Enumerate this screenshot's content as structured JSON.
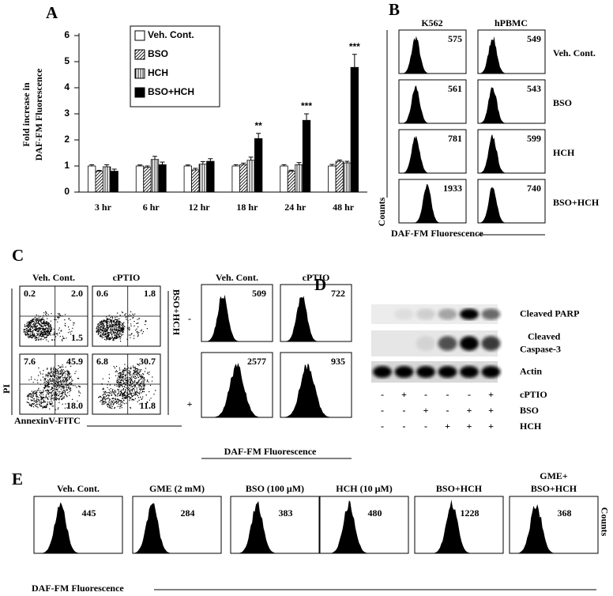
{
  "chart_data": {
    "type": "bar",
    "panel_label": "A",
    "ylabel": [
      "Fold increase in",
      "DAF-FM Fluorescence"
    ],
    "categories": [
      "3 hr",
      "6 hr",
      "12 hr",
      "18 hr",
      "24 hr",
      "48 hr"
    ],
    "series": [
      {
        "name": "Veh. Cont.",
        "color": "#ffffff",
        "pattern": "none",
        "values": [
          1.0,
          1.0,
          1.0,
          1.0,
          1.0,
          1.0
        ],
        "errors": [
          0.05,
          0.04,
          0.04,
          0.05,
          0.05,
          0.06
        ]
      },
      {
        "name": "BSO",
        "color": "#ffffff",
        "pattern": "diagonal",
        "values": [
          0.8,
          0.95,
          0.85,
          1.05,
          0.8,
          1.18
        ],
        "errors": [
          0.03,
          0.05,
          0.06,
          0.06,
          0.04,
          0.05
        ]
      },
      {
        "name": "HCH",
        "color": "#ffffff",
        "pattern": "vertical",
        "values": [
          0.97,
          1.25,
          1.07,
          1.22,
          1.05,
          1.12
        ],
        "errors": [
          0.08,
          0.12,
          0.1,
          0.12,
          0.08,
          0.06
        ]
      },
      {
        "name": "BSO+HCH",
        "color": "#000000",
        "pattern": "none",
        "values": [
          0.8,
          1.05,
          1.18,
          2.05,
          2.75,
          4.78
        ],
        "errors": [
          0.08,
          0.1,
          0.1,
          0.2,
          0.25,
          0.5
        ]
      }
    ],
    "annotations": [
      null,
      null,
      null,
      "**",
      "***",
      "***"
    ],
    "ylim": [
      0,
      6
    ],
    "yticks": [
      0,
      1,
      2,
      3,
      4,
      5,
      6
    ],
    "legend": "top-left"
  },
  "panel_b": {
    "panel_label": "B",
    "columns": [
      "K562",
      "hPBMC"
    ],
    "rows": [
      "Veh. Cont.",
      "BSO",
      "HCH",
      "BSO+HCH"
    ],
    "values": [
      [
        575,
        549
      ],
      [
        561,
        543
      ],
      [
        781,
        599
      ],
      [
        1933,
        740
      ]
    ],
    "y_label": "Counts",
    "x_label": "DAF-FM Fluorescence"
  },
  "panel_c": {
    "panel_label": "C",
    "scatter": {
      "columns": [
        "Veh. Cont.",
        "cPTIO"
      ],
      "quadrants": [
        [
          {
            "upper_left": "0.2",
            "upper_right": "2.0",
            "lower_right": "1.5"
          },
          {
            "upper_left": "0.6",
            "upper_right": "1.8",
            "lower_right": null
          }
        ],
        [
          {
            "upper_left": "7.6",
            "upper_right": "45.9",
            "lower_right": "18.0"
          },
          {
            "upper_left": "6.8",
            "upper_right": "30.7",
            "lower_right": "11.8"
          }
        ]
      ],
      "x_label": "AnnexinV-FITC",
      "y_label": "PI"
    },
    "treatment_label": "BSO+HCH",
    "treatment_rows": [
      "-",
      "+"
    ],
    "histograms": {
      "columns": [
        "Veh. Cont.",
        "cPTIO"
      ],
      "values": [
        [
          509,
          722
        ],
        [
          2577,
          935
        ]
      ],
      "x_label": "DAF-FM Fluorescence"
    }
  },
  "panel_d": {
    "panel_label": "D",
    "blots": [
      [
        "Cleaved PARP"
      ],
      [
        "Cleaved",
        "Caspase-3"
      ],
      [
        "Actin"
      ]
    ],
    "treatments": [
      {
        "name": "cPTIO",
        "signs": [
          "-",
          "+",
          "-",
          "-",
          "-",
          "+"
        ]
      },
      {
        "name": "BSO",
        "signs": [
          "-",
          "-",
          "+",
          "-",
          "+",
          "+"
        ]
      },
      {
        "name": "HCH",
        "signs": [
          "-",
          "-",
          "-",
          "+",
          "+",
          "+"
        ]
      }
    ]
  },
  "panel_e": {
    "panel_label": "E",
    "samples": [
      {
        "name": [
          "Veh. Cont."
        ],
        "value": 445
      },
      {
        "name": [
          "GME (2 mM)"
        ],
        "value": 284
      },
      {
        "name": [
          "BSO (100 μM)"
        ],
        "value": 383
      },
      {
        "name": [
          "HCH (10 μM)"
        ],
        "value": 480
      },
      {
        "name": [
          "BSO+HCH"
        ],
        "value": 1228
      },
      {
        "name": [
          "GME+",
          "BSO+HCH"
        ],
        "value": 368
      }
    ],
    "y_label": "Counts",
    "x_label": "DAF-FM Fluorescence"
  }
}
